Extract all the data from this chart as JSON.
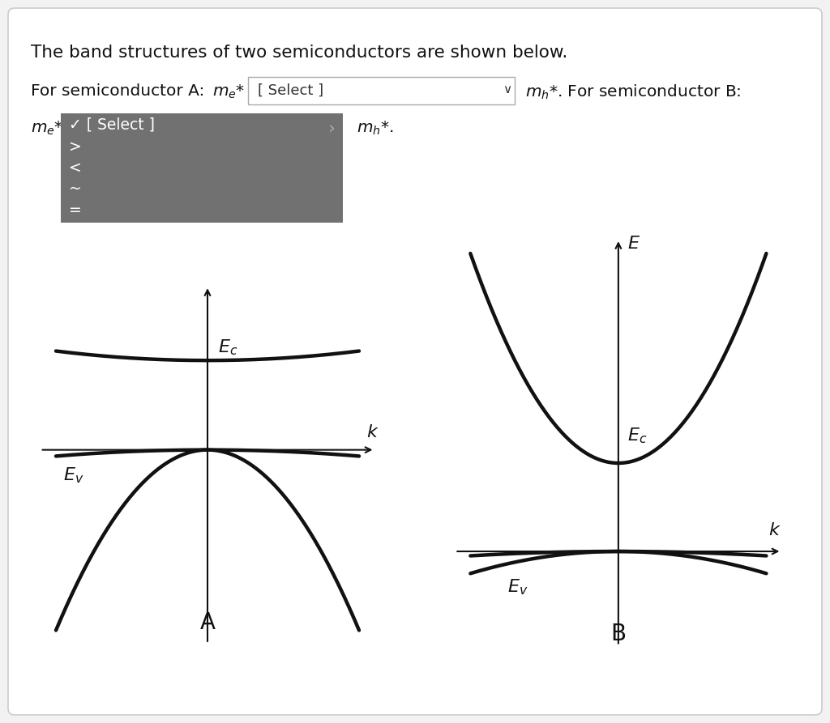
{
  "title_text": "The band structures of two semiconductors are shown below.",
  "line1_text1": "For semiconductor A: ",
  "line1_me": "$m_e$*",
  "line1_dropdown": "[ Select ]",
  "line1_arrow": "✓",
  "line1_mh": "$m_h$*. For semiconductor B:",
  "line2_me": "$m_e$*",
  "line2_mh": "$m_h$*.",
  "dropdown_items": [
    "✓ [ Select ]",
    ">",
    "<",
    "~",
    "="
  ],
  "label_A": "A",
  "label_B": "B",
  "Ec_label": "$E_c$",
  "Ev_label": "$E_v$",
  "E_label": "$E$",
  "k_label": "$k$",
  "bg_color": "#f2f2f2",
  "card_color": "#ffffff",
  "dropdown_bg": "#717171",
  "dropdown_text": "#ffffff",
  "line_color": "#111111",
  "line_width": 3.2,
  "axis_lw": 1.5
}
